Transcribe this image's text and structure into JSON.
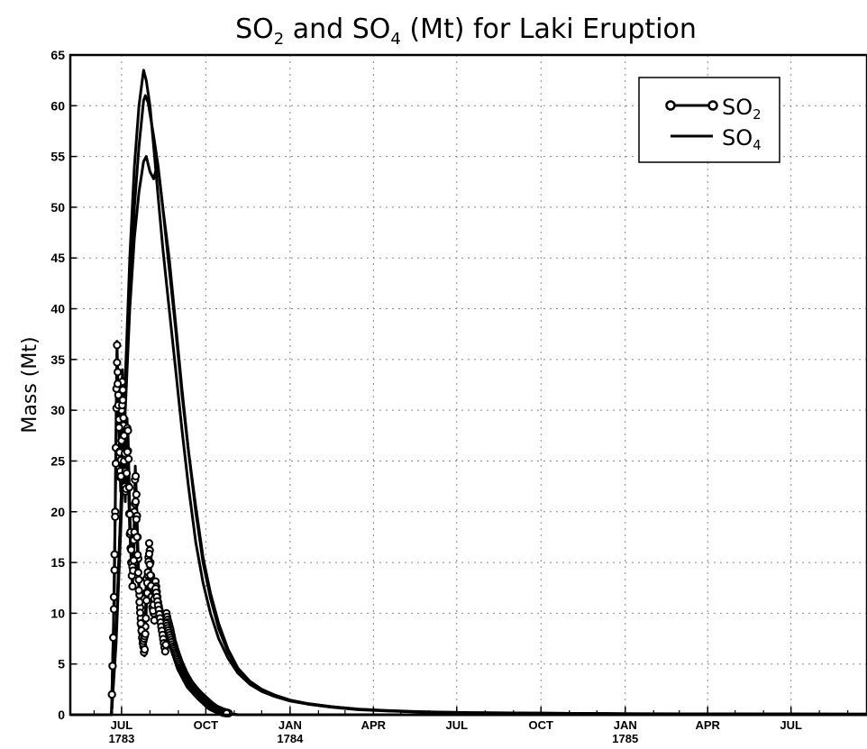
{
  "chart_data": {
    "type": "line",
    "title": {
      "p1": "SO",
      "s1": "2",
      "p2": " and SO",
      "s2": "4",
      "p3": " (Mt) for Laki Eruption"
    },
    "ylabel": "Mass (Mt)",
    "ylim": [
      0,
      65
    ],
    "yticks": [
      0,
      5,
      10,
      15,
      20,
      25,
      30,
      35,
      40,
      45,
      50,
      55,
      60,
      65
    ],
    "x_start": "1783-05-06",
    "xlim": [
      "1783-05-06",
      "1785-09-22"
    ],
    "xticks": [
      {
        "date": "1783-07-01",
        "label": "JUL",
        "year": "1783"
      },
      {
        "date": "1783-10-01",
        "label": "OCT",
        "year": ""
      },
      {
        "date": "1784-01-01",
        "label": "JAN",
        "year": "1784"
      },
      {
        "date": "1784-04-01",
        "label": "APR",
        "year": ""
      },
      {
        "date": "1784-07-01",
        "label": "JUL",
        "year": ""
      },
      {
        "date": "1784-10-01",
        "label": "OCT",
        "year": ""
      },
      {
        "date": "1785-01-01",
        "label": "JAN",
        "year": "1785"
      },
      {
        "date": "1785-04-01",
        "label": "APR",
        "year": ""
      },
      {
        "date": "1785-07-01",
        "label": "JUL",
        "year": ""
      }
    ],
    "grid": true,
    "legend_position": "top-right",
    "legend": [
      {
        "base": "SO",
        "sub": "2",
        "style": "line-circle"
      },
      {
        "base": "SO",
        "sub": "4",
        "style": "line"
      }
    ],
    "so2_points": [
      [
        "1783-05-06",
        0
      ],
      [
        "1783-06-20",
        0
      ],
      [
        "1783-06-21",
        4
      ],
      [
        "1783-06-22",
        8
      ],
      [
        "1783-06-23",
        14
      ],
      [
        "1783-06-24",
        20
      ],
      [
        "1783-06-25",
        29
      ],
      [
        "1783-06-26",
        36.8
      ],
      [
        "1783-06-27",
        33
      ],
      [
        "1783-06-28",
        30
      ],
      [
        "1783-06-29",
        25.5
      ],
      [
        "1783-06-30",
        23
      ],
      [
        "1783-07-01",
        30
      ],
      [
        "1783-07-02",
        34
      ],
      [
        "1783-07-03",
        29
      ],
      [
        "1783-07-04",
        24
      ],
      [
        "1783-07-05",
        21
      ],
      [
        "1783-07-06",
        26
      ],
      [
        "1783-07-07",
        29.2
      ],
      [
        "1783-07-08",
        26
      ],
      [
        "1783-07-09",
        21
      ],
      [
        "1783-07-10",
        18
      ],
      [
        "1783-07-11",
        16
      ],
      [
        "1783-07-12",
        14
      ],
      [
        "1783-07-13",
        12.5
      ],
      [
        "1783-07-14",
        16
      ],
      [
        "1783-07-15",
        20
      ],
      [
        "1783-07-16",
        24.5
      ],
      [
        "1783-07-17",
        22
      ],
      [
        "1783-07-18",
        19
      ],
      [
        "1783-07-19",
        16
      ],
      [
        "1783-07-20",
        13
      ],
      [
        "1783-07-21",
        11
      ],
      [
        "1783-07-22",
        9.5
      ],
      [
        "1783-07-23",
        8.5
      ],
      [
        "1783-07-24",
        7.5
      ],
      [
        "1783-07-25",
        6.5
      ],
      [
        "1783-07-26",
        5.8
      ],
      [
        "1783-07-27",
        9
      ],
      [
        "1783-07-28",
        14
      ],
      [
        "1783-07-29",
        12
      ],
      [
        "1783-07-31",
        17
      ],
      [
        "1783-08-01",
        16
      ],
      [
        "1783-08-02",
        14
      ],
      [
        "1783-08-03",
        12.5
      ],
      [
        "1783-08-04",
        11
      ],
      [
        "1783-08-05",
        10
      ],
      [
        "1783-08-06",
        9
      ],
      [
        "1783-08-07",
        13.2
      ],
      [
        "1783-08-08",
        12.5
      ],
      [
        "1783-08-10",
        11
      ],
      [
        "1783-08-12",
        10
      ],
      [
        "1783-08-14",
        8.5
      ],
      [
        "1783-08-16",
        7.5
      ],
      [
        "1783-08-18",
        6.5
      ],
      [
        "1783-08-19",
        10
      ],
      [
        "1783-08-20",
        9.5
      ],
      [
        "1783-08-23",
        8.5
      ],
      [
        "1783-08-26",
        7.2
      ],
      [
        "1783-08-30",
        6
      ],
      [
        "1783-09-03",
        5
      ],
      [
        "1783-09-08",
        4
      ],
      [
        "1783-09-13",
        3.2
      ],
      [
        "1783-09-18",
        2.6
      ],
      [
        "1783-09-24",
        2
      ],
      [
        "1783-09-30",
        1.5
      ],
      [
        "1783-10-06",
        1
      ],
      [
        "1783-10-12",
        0.6
      ],
      [
        "1783-10-20",
        0.3
      ],
      [
        "1783-10-28",
        0.1
      ],
      [
        "1783-11-05",
        0
      ],
      [
        "1785-09-22",
        0
      ]
    ],
    "so2_points_b": [
      [
        "1783-06-20",
        0
      ],
      [
        "1783-06-23",
        12
      ],
      [
        "1783-06-25",
        27
      ],
      [
        "1783-06-26",
        35
      ],
      [
        "1783-06-28",
        29
      ],
      [
        "1783-06-30",
        22
      ],
      [
        "1783-07-02",
        32
      ],
      [
        "1783-07-04",
        27
      ],
      [
        "1783-07-06",
        22
      ],
      [
        "1783-07-08",
        28
      ],
      [
        "1783-07-10",
        20
      ],
      [
        "1783-07-12",
        15
      ],
      [
        "1783-07-14",
        14
      ],
      [
        "1783-07-16",
        22
      ],
      [
        "1783-07-18",
        17
      ],
      [
        "1783-07-20",
        12
      ],
      [
        "1783-07-22",
        9
      ],
      [
        "1783-07-24",
        7
      ],
      [
        "1783-07-27",
        8
      ],
      [
        "1783-07-29",
        13
      ],
      [
        "1783-07-31",
        16
      ],
      [
        "1783-08-02",
        13
      ],
      [
        "1783-08-04",
        10
      ],
      [
        "1783-08-07",
        12.5
      ],
      [
        "1783-08-12",
        9.5
      ],
      [
        "1783-08-18",
        6
      ],
      [
        "1783-08-19",
        9
      ],
      [
        "1783-08-26",
        6.7
      ],
      [
        "1783-09-03",
        4.6
      ],
      [
        "1783-09-13",
        2.9
      ],
      [
        "1783-09-24",
        1.8
      ],
      [
        "1783-10-06",
        0.8
      ],
      [
        "1783-10-20",
        0.2
      ],
      [
        "1783-11-05",
        0
      ]
    ],
    "so4_series": [
      [
        [
          "1783-05-06",
          0
        ],
        [
          "1783-06-20",
          0
        ],
        [
          "1783-06-25",
          8
        ],
        [
          "1783-06-30",
          20
        ],
        [
          "1783-07-05",
          32
        ],
        [
          "1783-07-10",
          42
        ],
        [
          "1783-07-15",
          50
        ],
        [
          "1783-07-20",
          56
        ],
        [
          "1783-07-25",
          60.5
        ],
        [
          "1783-07-27",
          61
        ],
        [
          "1783-07-30",
          60.3
        ],
        [
          "1783-08-05",
          57
        ],
        [
          "1783-08-10",
          54
        ],
        [
          "1783-08-15",
          50
        ],
        [
          "1783-08-22",
          45
        ],
        [
          "1783-08-29",
          38.5
        ],
        [
          "1783-09-05",
          32
        ],
        [
          "1783-09-12",
          26
        ],
        [
          "1783-09-20",
          20
        ],
        [
          "1783-09-28",
          15
        ],
        [
          "1783-10-06",
          11.5
        ],
        [
          "1783-10-15",
          8.5
        ],
        [
          "1783-10-25",
          6.2
        ],
        [
          "1783-11-05",
          4.4
        ],
        [
          "1783-11-18",
          3.2
        ],
        [
          "1783-12-01",
          2.4
        ],
        [
          "1783-12-15",
          1.9
        ],
        [
          "1784-01-01",
          1.4
        ],
        [
          "1784-01-20",
          1.1
        ],
        [
          "1784-02-15",
          0.8
        ],
        [
          "1784-03-15",
          0.55
        ],
        [
          "1784-04-15",
          0.4
        ],
        [
          "1784-05-15",
          0.3
        ],
        [
          "1784-06-15",
          0.25
        ],
        [
          "1784-07-15",
          0.2
        ],
        [
          "1785-01-01",
          0.1
        ],
        [
          "1785-09-22",
          0.05
        ]
      ],
      [
        [
          "1783-05-06",
          0
        ],
        [
          "1783-06-20",
          0
        ],
        [
          "1783-06-25",
          8
        ],
        [
          "1783-06-30",
          20
        ],
        [
          "1783-07-05",
          33
        ],
        [
          "1783-07-10",
          45
        ],
        [
          "1783-07-15",
          54
        ],
        [
          "1783-07-20",
          60
        ],
        [
          "1783-07-25",
          63.5
        ],
        [
          "1783-07-28",
          62.5
        ],
        [
          "1783-08-01",
          60
        ],
        [
          "1783-08-05",
          56
        ],
        [
          "1783-08-10",
          51
        ],
        [
          "1783-08-15",
          46
        ],
        [
          "1783-08-22",
          40
        ],
        [
          "1783-08-29",
          34
        ],
        [
          "1783-09-05",
          28
        ],
        [
          "1783-09-12",
          22.5
        ],
        [
          "1783-09-20",
          17
        ],
        [
          "1783-09-28",
          13
        ],
        [
          "1783-10-06",
          10
        ],
        [
          "1783-10-15",
          7.5
        ],
        [
          "1783-10-25",
          5.6
        ],
        [
          "1783-11-05",
          4.1
        ],
        [
          "1783-11-18",
          3
        ],
        [
          "1783-12-01",
          2.3
        ],
        [
          "1783-12-15",
          1.8
        ],
        [
          "1784-01-01",
          1.35
        ],
        [
          "1784-01-20",
          1.05
        ],
        [
          "1784-02-15",
          0.75
        ],
        [
          "1784-03-15",
          0.5
        ],
        [
          "1784-04-15",
          0.38
        ],
        [
          "1784-05-15",
          0.28
        ],
        [
          "1784-06-15",
          0.22
        ],
        [
          "1784-07-15",
          0.18
        ],
        [
          "1785-01-01",
          0.09
        ],
        [
          "1785-09-22",
          0.05
        ]
      ],
      [
        [
          "1783-05-06",
          0
        ],
        [
          "1783-06-20",
          0
        ],
        [
          "1783-06-25",
          7
        ],
        [
          "1783-06-30",
          18
        ],
        [
          "1783-07-05",
          30
        ],
        [
          "1783-07-10",
          40
        ],
        [
          "1783-07-15",
          47
        ],
        [
          "1783-07-20",
          51.5
        ],
        [
          "1783-07-25",
          54.5
        ],
        [
          "1783-07-28",
          55
        ],
        [
          "1783-08-01",
          53.5
        ],
        [
          "1783-08-05",
          52.8
        ],
        [
          "1783-08-08",
          53.8
        ],
        [
          "1783-08-11",
          53
        ],
        [
          "1783-08-15",
          50
        ],
        [
          "1783-08-22",
          44
        ],
        [
          "1783-08-29",
          38
        ],
        [
          "1783-09-05",
          31.5
        ],
        [
          "1783-09-12",
          26
        ],
        [
          "1783-09-20",
          20.5
        ],
        [
          "1783-09-28",
          15.5
        ],
        [
          "1783-10-06",
          12
        ],
        [
          "1783-10-15",
          9
        ],
        [
          "1783-10-25",
          6.5
        ],
        [
          "1783-11-05",
          4.6
        ],
        [
          "1783-11-18",
          3.3
        ],
        [
          "1783-12-01",
          2.5
        ],
        [
          "1783-12-15",
          1.95
        ],
        [
          "1784-01-01",
          1.45
        ],
        [
          "1784-01-20",
          1.1
        ],
        [
          "1784-02-15",
          0.8
        ],
        [
          "1784-03-15",
          0.55
        ],
        [
          "1784-04-15",
          0.42
        ],
        [
          "1784-05-15",
          0.32
        ],
        [
          "1784-06-15",
          0.26
        ],
        [
          "1784-07-15",
          0.21
        ],
        [
          "1785-01-01",
          0.1
        ],
        [
          "1785-09-22",
          0.05
        ]
      ]
    ]
  }
}
